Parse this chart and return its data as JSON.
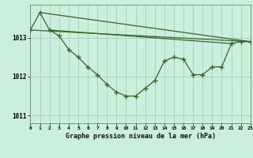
{
  "title": "Graphe pression niveau de la mer (hPa)",
  "background_color": "#cceedd",
  "grid_color": "#aaccbb",
  "line_color": "#2d6a2d",
  "xlim": [
    0,
    23
  ],
  "ylim": [
    1010.8,
    1013.85
  ],
  "yticks": [
    1011,
    1012,
    1013
  ],
  "xticks": [
    0,
    1,
    2,
    3,
    4,
    5,
    6,
    7,
    8,
    9,
    10,
    11,
    12,
    13,
    14,
    15,
    16,
    17,
    18,
    19,
    20,
    21,
    22,
    23
  ],
  "y_main": [
    1013.2,
    1013.65,
    1013.2,
    1013.05,
    1012.7,
    1012.5,
    1012.25,
    1012.05,
    1011.8,
    1011.6,
    1011.5,
    1011.5,
    1011.7,
    1011.9,
    1012.4,
    1012.5,
    1012.45,
    1012.05,
    1012.05,
    1012.25,
    1012.25,
    1012.85,
    1012.9,
    1012.9
  ],
  "straight_lines": [
    {
      "x0": 0,
      "y0": 1013.2,
      "x1": 23,
      "y1": 1012.9
    },
    {
      "x0": 1,
      "y0": 1013.65,
      "x1": 23,
      "y1": 1012.9
    },
    {
      "x0": 2,
      "y0": 1013.2,
      "x1": 21,
      "y1": 1012.85
    }
  ]
}
